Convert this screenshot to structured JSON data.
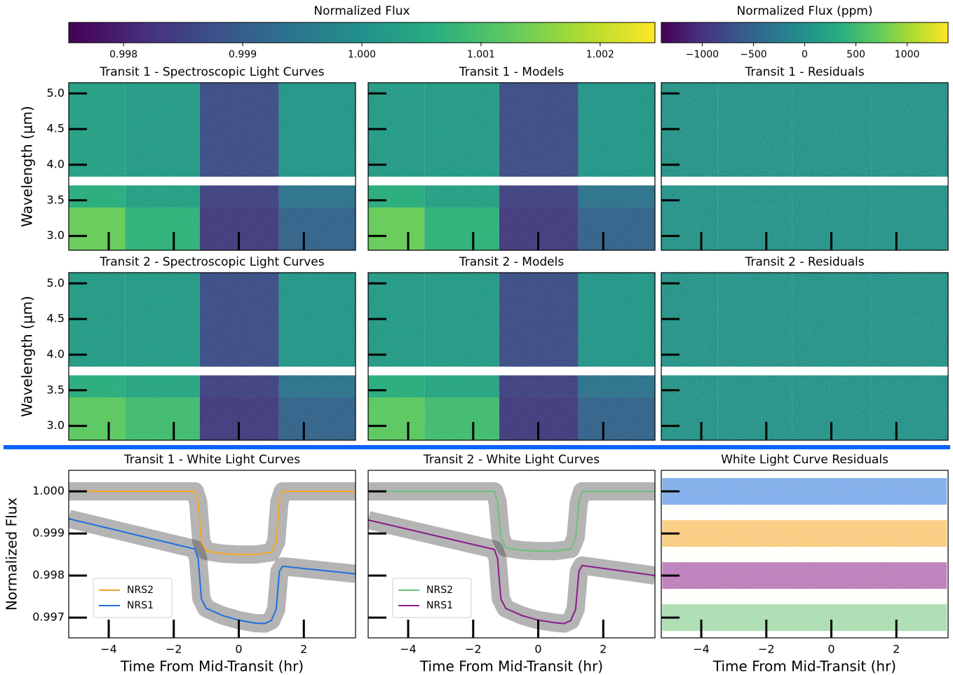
{
  "chart_data": [
    {
      "type": "colorbar",
      "title": "Normalized Flux",
      "colormap": "viridis",
      "clim": [
        0.99754,
        1.00246
      ],
      "ticks": [
        0.998,
        0.999,
        {
          "value": 1,
          "label": "1.000"
        },
        1.001,
        1.002
      ]
    },
    {
      "type": "colorbar",
      "title": "Normalized Flux (ppm)",
      "colormap": "viridis",
      "clim": [
        -1400,
        1400
      ],
      "ticks": [
        {
          "value": -1000,
          "label": "−1000"
        },
        {
          "value": -500,
          "label": "−500"
        },
        0,
        500,
        1000
      ]
    },
    {
      "type": "heatmap",
      "title": "Transit 1 - Spectroscopic Light Curves",
      "ylabel": "Wavelength (μm)",
      "colorbar": 0,
      "x_edges": [
        -5.23,
        -3.5,
        -1.2,
        1.23,
        3.59
      ],
      "y_edges": [
        2.8,
        3.4,
        3.71,
        3.83,
        5.15
      ],
      "values": [
        [
          1.0013,
          1.0007,
          0.9984,
          0.9991
        ],
        [
          1.0006,
          1.0003,
          0.9985,
          0.9994
        ],
        [
          null,
          null,
          null,
          null
        ],
        [
          1.0003,
          1.0002,
          0.9987,
          1.0001
        ]
      ],
      "xlim": [
        -5.23,
        3.59
      ],
      "ylim": [
        2.8,
        5.15
      ],
      "xticks": [
        -4,
        -2,
        0,
        2
      ],
      "yticks": [
        {
          "value": 3,
          "label": "3.0"
        },
        3.5,
        {
          "value": 4,
          "label": "4.0"
        },
        4.5,
        {
          "value": 5,
          "label": "5.0"
        }
      ]
    },
    {
      "type": "heatmap",
      "title": "Transit 1 - Models",
      "colorbar": 0,
      "x_edges": [
        -5.23,
        -3.5,
        -1.2,
        1.23,
        3.59
      ],
      "y_edges": [
        2.8,
        3.4,
        3.71,
        3.83,
        5.15
      ],
      "values": [
        [
          1.0013,
          1.0007,
          0.9984,
          0.9991
        ],
        [
          1.0006,
          1.0003,
          0.9985,
          0.9994
        ],
        [
          null,
          null,
          null,
          null
        ],
        [
          1.0002,
          1.0002,
          0.9987,
          1.0001
        ]
      ],
      "xlim": [
        -5.23,
        3.59
      ],
      "ylim": [
        2.8,
        5.15
      ],
      "xticks": [
        -4,
        -2,
        0,
        2
      ],
      "yticks": [
        3,
        3.5,
        4,
        4.5,
        5
      ]
    },
    {
      "type": "heatmap",
      "title": "Transit 1 - Residuals",
      "colorbar": 1,
      "x_edges": [
        -5.23,
        -3.5,
        -1.2,
        1.23,
        3.59
      ],
      "y_edges": [
        2.8,
        3.4,
        3.71,
        3.83,
        5.15
      ],
      "values": [
        [
          0,
          0,
          0,
          0
        ],
        [
          0,
          0,
          0,
          0
        ],
        [
          null,
          null,
          null,
          null
        ],
        [
          0,
          0,
          0,
          0
        ]
      ],
      "xlim": [
        -5.23,
        3.59
      ],
      "ylim": [
        2.8,
        5.15
      ],
      "xticks": [
        -4,
        -2,
        0,
        2
      ],
      "yticks": [
        3,
        3.5,
        4,
        4.5,
        5
      ]
    },
    {
      "type": "heatmap",
      "title": "Transit 2 - Spectroscopic Light Curves",
      "ylabel": "Wavelength (μm)",
      "colorbar": 0,
      "x_edges": [
        -5.23,
        -3.5,
        -1.2,
        1.23,
        3.59
      ],
      "y_edges": [
        2.8,
        3.4,
        3.71,
        3.83,
        5.15
      ],
      "values": [
        [
          1.0012,
          1.0009,
          0.9984,
          0.9991
        ],
        [
          1.0006,
          1.0004,
          0.9985,
          0.9994
        ],
        [
          null,
          null,
          null,
          null
        ],
        [
          1.0002,
          1.0002,
          0.9987,
          1.0001
        ]
      ],
      "xlim": [
        -5.23,
        3.59
      ],
      "ylim": [
        2.8,
        5.15
      ],
      "xticks": [
        -4,
        -2,
        0,
        2
      ],
      "yticks": [
        {
          "value": 3,
          "label": "3.0"
        },
        3.5,
        {
          "value": 4,
          "label": "4.0"
        },
        4.5,
        {
          "value": 5,
          "label": "5.0"
        }
      ]
    },
    {
      "type": "heatmap",
      "title": "Transit 2 - Models",
      "colorbar": 0,
      "x_edges": [
        -5.23,
        -3.5,
        -1.2,
        1.23,
        3.59
      ],
      "y_edges": [
        2.8,
        3.4,
        3.71,
        3.83,
        5.15
      ],
      "values": [
        [
          1.0012,
          1.0009,
          0.9984,
          0.9991
        ],
        [
          1.0006,
          1.0004,
          0.9985,
          0.9994
        ],
        [
          null,
          null,
          null,
          null
        ],
        [
          1.0002,
          1.0002,
          0.9987,
          1.0001
        ]
      ],
      "xlim": [
        -5.23,
        3.59
      ],
      "ylim": [
        2.8,
        5.15
      ],
      "xticks": [
        -4,
        -2,
        0,
        2
      ],
      "yticks": [
        3,
        3.5,
        4,
        4.5,
        5
      ]
    },
    {
      "type": "heatmap",
      "title": "Transit 2 - Residuals",
      "colorbar": 1,
      "x_edges": [
        -5.23,
        -3.5,
        -1.2,
        1.23,
        3.59
      ],
      "y_edges": [
        2.8,
        3.4,
        3.71,
        3.83,
        5.15
      ],
      "values": [
        [
          0,
          0,
          0,
          0
        ],
        [
          0,
          0,
          0,
          0
        ],
        [
          null,
          null,
          null,
          null
        ],
        [
          0,
          0,
          0,
          0
        ]
      ],
      "xlim": [
        -5.23,
        3.59
      ],
      "ylim": [
        2.8,
        5.15
      ],
      "xticks": [
        -4,
        -2,
        0,
        2
      ],
      "yticks": [
        3,
        3.5,
        4,
        4.5,
        5
      ]
    },
    {
      "type": "line",
      "title": "Transit 1 - White Light Curves",
      "xlabel": "Time From Mid-Transit (hr)",
      "ylabel": "Normalized Flux",
      "xlim": [
        -5.23,
        3.59
      ],
      "ylim": [
        0.99652,
        1.0005
      ],
      "xticks": [
        {
          "value": -4,
          "label": "−4"
        },
        {
          "value": -2,
          "label": "−2"
        },
        0,
        2
      ],
      "yticks": [
        {
          "value": 1,
          "label": "1.000"
        },
        0.999,
        0.998,
        0.997
      ],
      "legend": "lower left",
      "series": [
        {
          "name": "NRS2",
          "color": "#f5a623",
          "x": [
            -5.23,
            -1.35,
            -1.25,
            -1.15,
            -1.0,
            -0.5,
            0,
            0.5,
            1.0,
            1.15,
            1.25,
            1.35,
            3.59
          ],
          "values": [
            1.0,
            1.0,
            0.99975,
            0.9988,
            0.99858,
            0.99852,
            0.9985,
            0.9985,
            0.99855,
            0.9988,
            0.99975,
            1.0,
            1.0
          ]
        },
        {
          "name": "NRS1",
          "color": "#1f6fe0",
          "x": [
            -5.23,
            -1.35,
            -1.25,
            -1.15,
            -1.0,
            -0.5,
            0,
            0.5,
            0.8,
            1.0,
            1.15,
            1.25,
            1.35,
            3.59
          ],
          "values": [
            0.99935,
            0.99863,
            0.9984,
            0.99745,
            0.99722,
            0.99705,
            0.99694,
            0.99687,
            0.99686,
            0.99693,
            0.9972,
            0.9981,
            0.99822,
            0.99804
          ]
        }
      ]
    },
    {
      "type": "line",
      "title": "Transit 2 - White Light Curves",
      "xlabel": "Time From Mid-Transit (hr)",
      "xlim": [
        -5.23,
        3.59
      ],
      "ylim": [
        0.99652,
        1.0005
      ],
      "xticks": [
        {
          "value": -4,
          "label": "−4"
        },
        {
          "value": -2,
          "label": "−2"
        },
        0,
        2
      ],
      "yticks": [
        1,
        0.999,
        0.998,
        0.997
      ],
      "legend": "lower left",
      "series": [
        {
          "name": "NRS2",
          "color": "#6cc27a",
          "x": [
            -5.23,
            -1.35,
            -1.25,
            -1.15,
            -1.0,
            -0.5,
            0,
            0.5,
            1.0,
            1.15,
            1.25,
            1.35,
            3.59
          ],
          "values": [
            1.0,
            1.0,
            0.99975,
            0.9989,
            0.99866,
            0.9986,
            0.99858,
            0.99858,
            0.99863,
            0.9989,
            0.99975,
            1.0,
            1.0
          ]
        },
        {
          "name": "NRS1",
          "color": "#8b1a8b",
          "x": [
            -5.23,
            -1.35,
            -1.25,
            -1.15,
            -1.0,
            -0.5,
            0,
            0.5,
            0.8,
            1.0,
            1.15,
            1.25,
            1.35,
            3.59
          ],
          "values": [
            0.99932,
            0.99862,
            0.9984,
            0.99745,
            0.99722,
            0.99705,
            0.99694,
            0.99688,
            0.99686,
            0.99693,
            0.9972,
            0.9981,
            0.99824,
            0.998
          ]
        }
      ]
    },
    {
      "type": "band",
      "title": "White Light Curve Residuals",
      "xlabel": "Time From Mid-Transit (hr)",
      "xlim": [
        -5.23,
        3.59
      ],
      "ylim": [
        0.99652,
        1.0005
      ],
      "xticks": [
        {
          "value": -4,
          "label": "−4"
        },
        {
          "value": -2,
          "label": "−2"
        },
        0,
        2
      ],
      "yticks": [
        1,
        0.999,
        0.998,
        0.997
      ],
      "series": [
        {
          "color": "#1f6fe0",
          "x": [
            -5.2,
            3.55
          ],
          "values": [
            1.0,
            1.0
          ]
        },
        {
          "color": "#f5a623",
          "x": [
            -5.2,
            3.55
          ],
          "values": [
            0.999,
            0.999
          ]
        },
        {
          "color": "#8b1a8b",
          "x": [
            -5.2,
            3.55
          ],
          "values": [
            0.998,
            0.998
          ]
        },
        {
          "color": "#6cc27a",
          "x": [
            -5.2,
            3.55
          ],
          "values": [
            0.997,
            0.997
          ]
        }
      ]
    }
  ]
}
